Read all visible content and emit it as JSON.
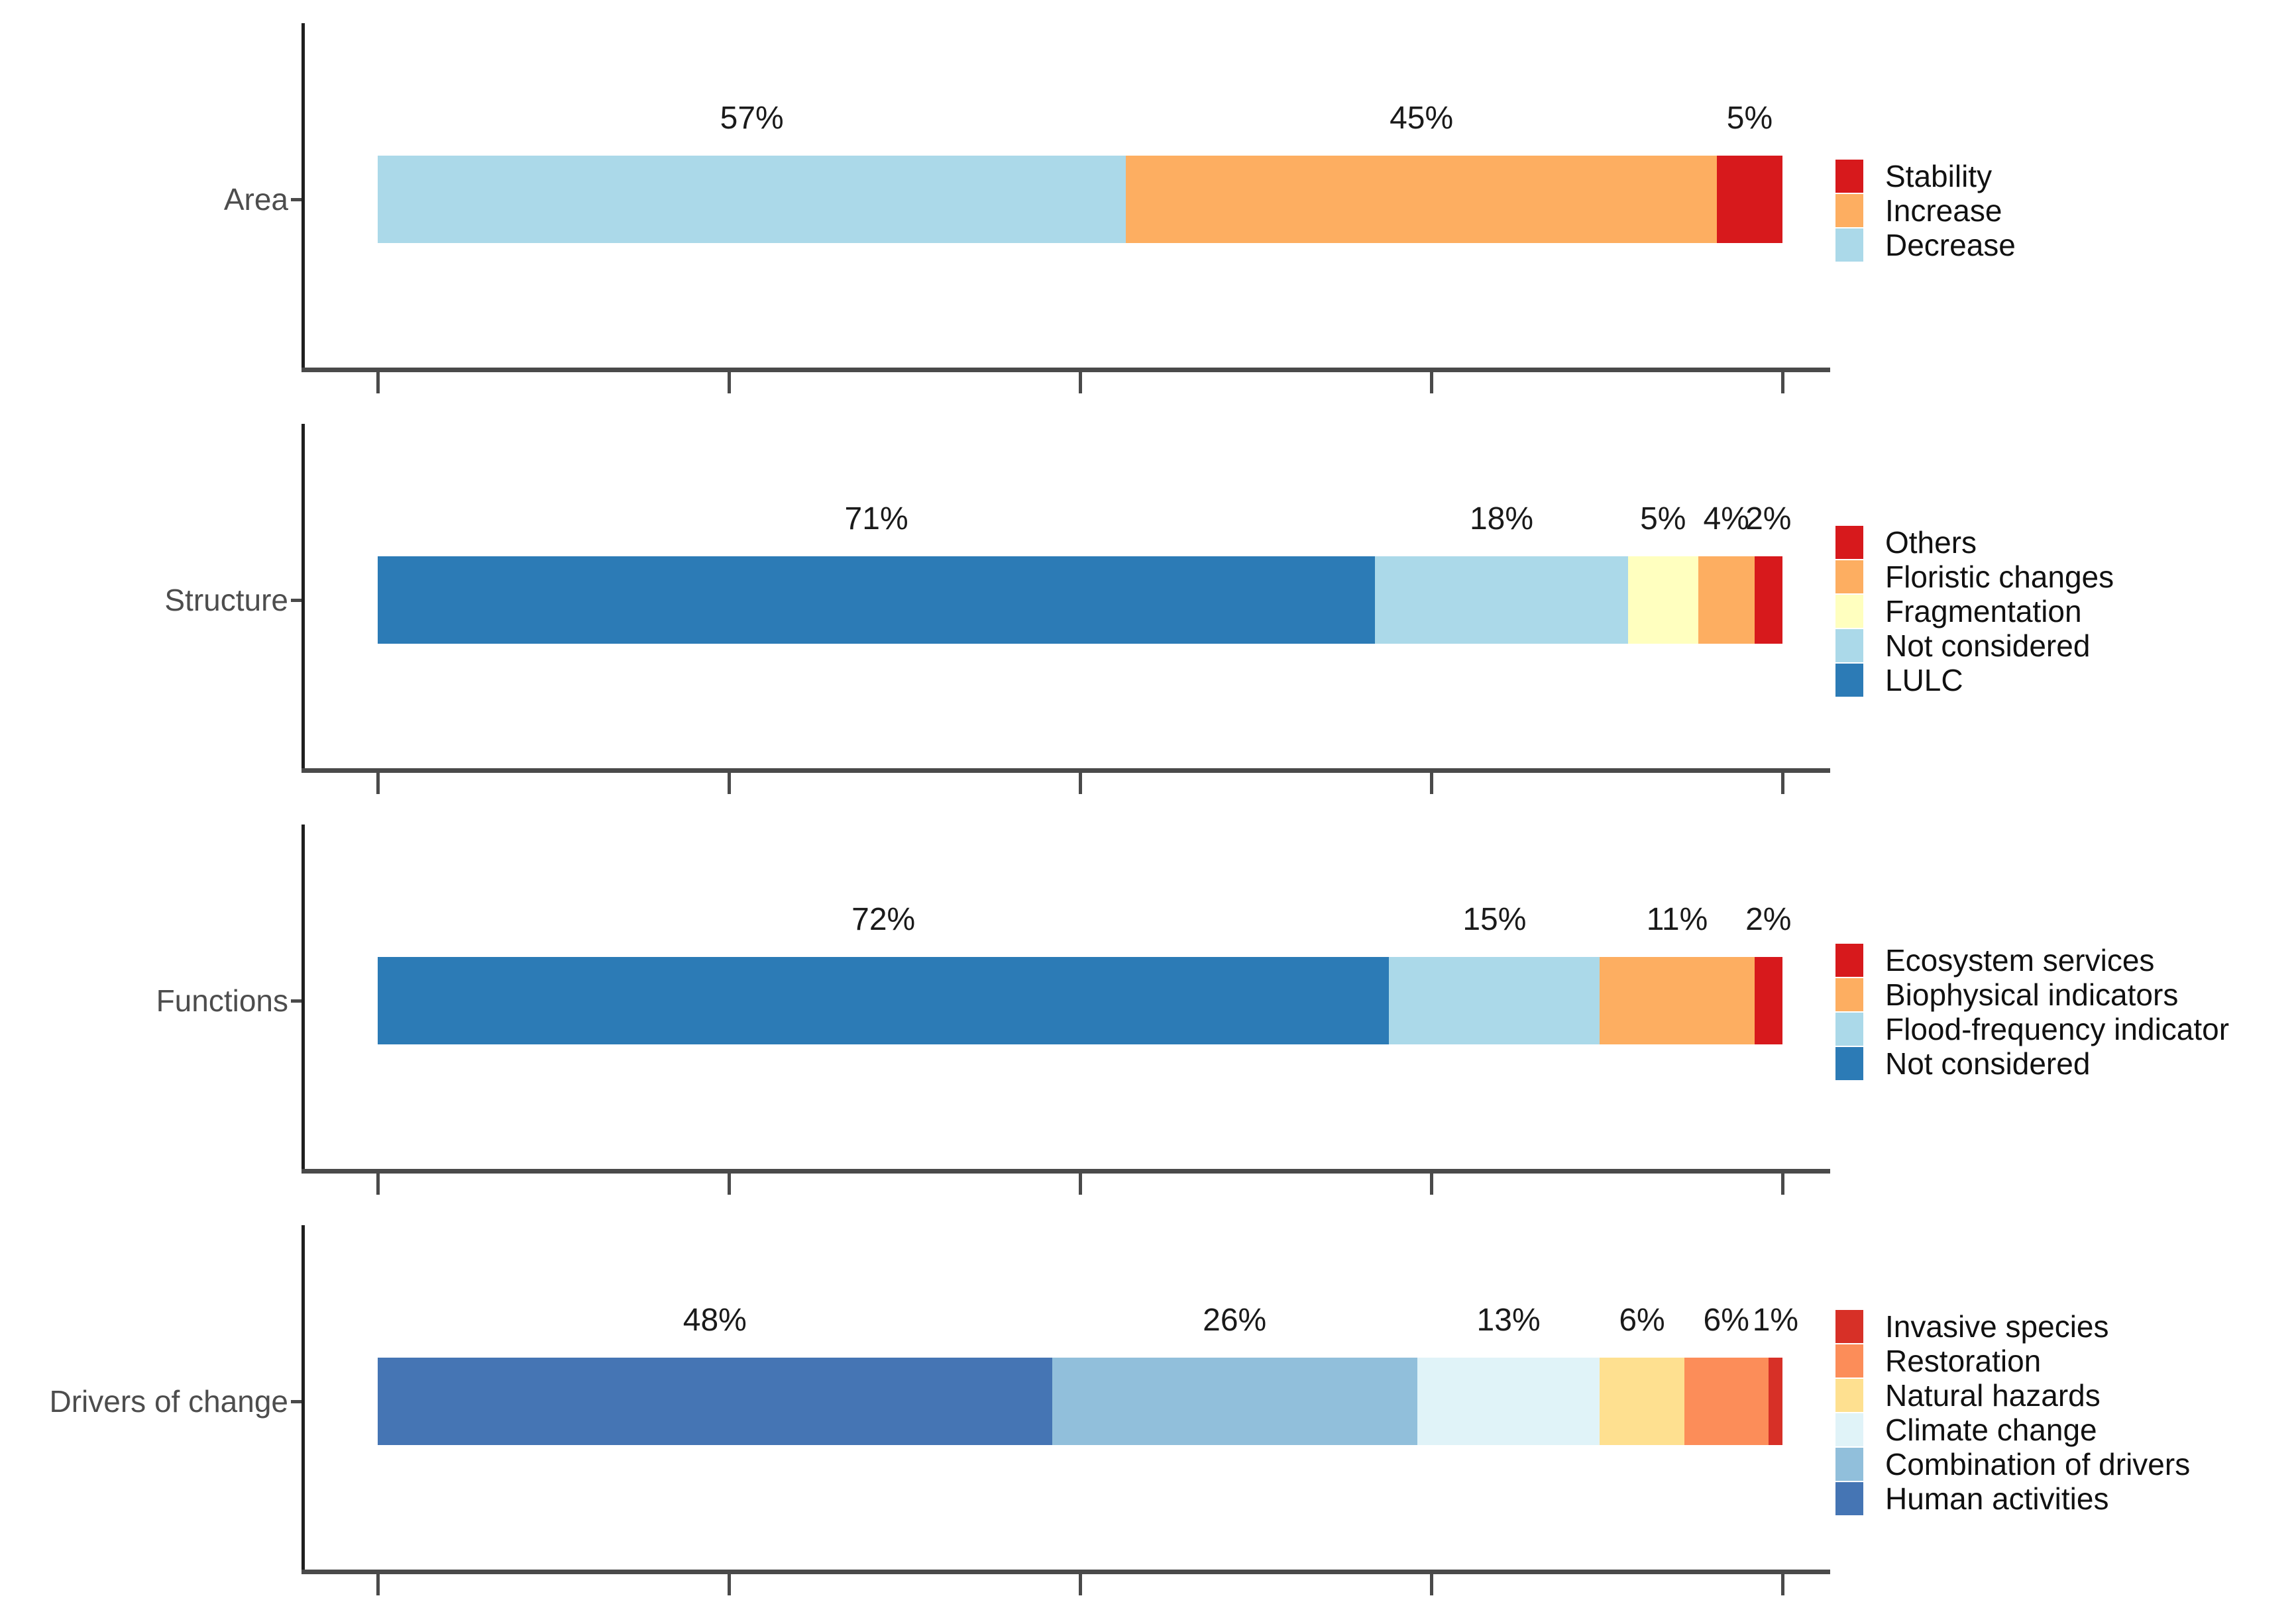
{
  "figure": {
    "background": "#ffffff",
    "axis_color": "#4a4a4a",
    "category_label_color": "#4d4d4d",
    "percent_label_color": "#1a1a1a",
    "x_ticks_percent": [
      0,
      25,
      50,
      75,
      100
    ]
  },
  "chart_data": [
    {
      "type": "bar",
      "orientation": "horizontal_stacked",
      "category": "Area",
      "segments": [
        {
          "label": "Decrease",
          "value": 57,
          "percent_label": "57%",
          "color": "#ABD9E9"
        },
        {
          "label": "Increase",
          "value": 45,
          "percent_label": "45%",
          "color": "#FDAE61"
        },
        {
          "label": "Stability",
          "value": 5,
          "percent_label": "5%",
          "color": "#D7191C"
        }
      ],
      "legend": [
        {
          "label": "Stability",
          "color": "#D7191C"
        },
        {
          "label": "Increase",
          "color": "#FDAE61"
        },
        {
          "label": "Decrease",
          "color": "#ABD9E9"
        }
      ]
    },
    {
      "type": "bar",
      "orientation": "horizontal_stacked",
      "category": "Structure",
      "segments": [
        {
          "label": "LULC",
          "value": 71,
          "percent_label": "71%",
          "color": "#2C7BB6"
        },
        {
          "label": "Not considered",
          "value": 18,
          "percent_label": "18%",
          "color": "#ABD9E9"
        },
        {
          "label": "Fragmentation",
          "value": 5,
          "percent_label": "5%",
          "color": "#FFFFBF"
        },
        {
          "label": "Floristic changes",
          "value": 4,
          "percent_label": "4%",
          "color": "#FDAE61"
        },
        {
          "label": "Others",
          "value": 2,
          "percent_label": "2%",
          "color": "#D7191C"
        }
      ],
      "legend": [
        {
          "label": "Others",
          "color": "#D7191C"
        },
        {
          "label": "Floristic changes",
          "color": "#FDAE61"
        },
        {
          "label": "Fragmentation",
          "color": "#FFFFBF"
        },
        {
          "label": "Not considered",
          "color": "#ABD9E9"
        },
        {
          "label": "LULC",
          "color": "#2C7BB6"
        }
      ]
    },
    {
      "type": "bar",
      "orientation": "horizontal_stacked",
      "category": "Functions",
      "segments": [
        {
          "label": "Not considered",
          "value": 72,
          "percent_label": "72%",
          "color": "#2C7BB6"
        },
        {
          "label": "Flood-frequency indicator",
          "value": 15,
          "percent_label": "15%",
          "color": "#ABD9E9"
        },
        {
          "label": "Biophysical indicators",
          "value": 11,
          "percent_label": "11%",
          "color": "#FDAE61"
        },
        {
          "label": "Ecosystem services",
          "value": 2,
          "percent_label": "2%",
          "color": "#D7191C"
        }
      ],
      "legend": [
        {
          "label": "Ecosystem services",
          "color": "#D7191C"
        },
        {
          "label": "Biophysical indicators",
          "color": "#FDAE61"
        },
        {
          "label": "Flood-frequency indicator",
          "color": "#ABD9E9"
        },
        {
          "label": "Not considered",
          "color": "#2C7BB6"
        }
      ]
    },
    {
      "type": "bar",
      "orientation": "horizontal_stacked",
      "category": "Drivers of change",
      "segments": [
        {
          "label": "Human activities",
          "value": 48,
          "percent_label": "48%",
          "color": "#4575B4"
        },
        {
          "label": "Combination of drivers",
          "value": 26,
          "percent_label": "26%",
          "color": "#91BFDB"
        },
        {
          "label": "Climate change",
          "value": 13,
          "percent_label": "13%",
          "color": "#E0F3F8"
        },
        {
          "label": "Natural hazards",
          "value": 6,
          "percent_label": "6%",
          "color": "#FEE090"
        },
        {
          "label": "Restoration",
          "value": 6,
          "percent_label": "6%",
          "color": "#FC8D59"
        },
        {
          "label": "Invasive species",
          "value": 1,
          "percent_label": "1%",
          "color": "#D73027"
        }
      ],
      "legend": [
        {
          "label": "Invasive species",
          "color": "#D73027"
        },
        {
          "label": "Restoration",
          "color": "#FC8D59"
        },
        {
          "label": "Natural hazards",
          "color": "#FEE090"
        },
        {
          "label": "Climate change",
          "color": "#E0F3F8"
        },
        {
          "label": "Combination of drivers",
          "color": "#91BFDB"
        },
        {
          "label": "Human activities",
          "color": "#4575B4"
        }
      ]
    }
  ]
}
